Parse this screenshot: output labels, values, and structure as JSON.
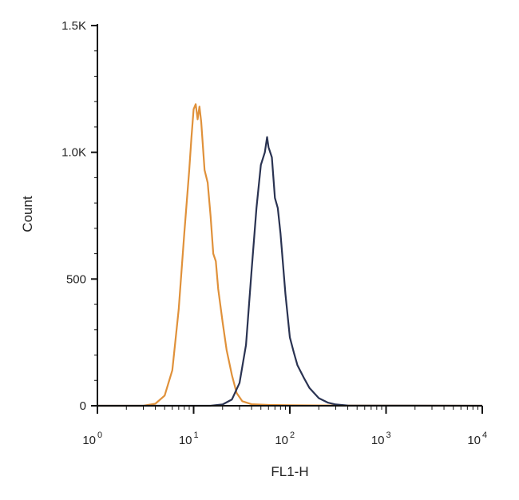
{
  "chart_data": {
    "type": "area",
    "xlabel": "FL1-H",
    "ylabel": "Count",
    "x_scale": "log",
    "xlim": [
      1,
      10000
    ],
    "ylim": [
      0,
      1500
    ],
    "x_ticks": [
      {
        "base": "10",
        "exp": "0",
        "value": 1
      },
      {
        "base": "10",
        "exp": "1",
        "value": 10
      },
      {
        "base": "10",
        "exp": "2",
        "value": 100
      },
      {
        "base": "10",
        "exp": "3",
        "value": 1000
      },
      {
        "base": "10",
        "exp": "4",
        "value": 10000
      }
    ],
    "y_ticks": [
      {
        "label": "0",
        "value": 0
      },
      {
        "label": "500",
        "value": 500
      },
      {
        "label": "1.0K",
        "value": 1000
      },
      {
        "label": "1.5K",
        "value": 1500
      }
    ],
    "grid": false,
    "legend": "none",
    "series": [
      {
        "color": "#e0913a",
        "x": [
          1,
          3,
          4,
          5,
          6,
          7,
          8,
          9,
          9.5,
          10,
          10.5,
          11,
          11.5,
          12,
          13,
          14,
          15,
          16,
          17,
          18,
          20,
          22,
          25,
          28,
          32,
          40,
          60,
          100,
          300,
          10000
        ],
        "y": [
          0,
          0,
          8,
          40,
          140,
          380,
          680,
          930,
          1060,
          1170,
          1190,
          1130,
          1180,
          1120,
          930,
          880,
          750,
          600,
          570,
          460,
          330,
          220,
          120,
          50,
          18,
          6,
          3,
          2,
          1,
          0
        ]
      },
      {
        "color": "#2a3352",
        "x": [
          1,
          15,
          20,
          25,
          30,
          35,
          40,
          45,
          50,
          55,
          58,
          60,
          65,
          70,
          75,
          80,
          90,
          100,
          110,
          120,
          140,
          160,
          200,
          250,
          300,
          400,
          10000
        ],
        "y": [
          0,
          0,
          5,
          25,
          90,
          240,
          530,
          780,
          950,
          1000,
          1060,
          1020,
          980,
          820,
          780,
          680,
          440,
          270,
          210,
          160,
          110,
          70,
          30,
          12,
          5,
          1,
          0
        ]
      }
    ]
  }
}
